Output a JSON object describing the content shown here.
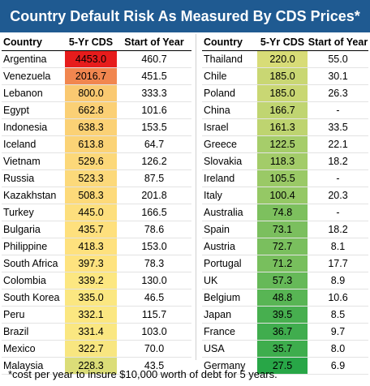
{
  "title": "Country Default Risk As Measured By CDS Prices*",
  "footnote": "*cost per year to insure $10,000 worth of debt for 5 years.",
  "colors": {
    "title_bg": "#1f5a91"
  },
  "chart_data": {
    "type": "table",
    "title": "Country Default Risk As Measured By CDS Prices*",
    "columns": [
      "Country",
      "5-Yr CDS",
      "Start of Year"
    ],
    "left_rows": [
      {
        "country": "Argentina",
        "cds": "4453.0",
        "soy": "460.7"
      },
      {
        "country": "Venezuela",
        "cds": "2016.7",
        "soy": "451.5"
      },
      {
        "country": "Lebanon",
        "cds": "800.0",
        "soy": "333.3"
      },
      {
        "country": "Egypt",
        "cds": "662.8",
        "soy": "101.6"
      },
      {
        "country": "Indonesia",
        "cds": "638.3",
        "soy": "153.5"
      },
      {
        "country": "Iceland",
        "cds": "613.8",
        "soy": "64.7"
      },
      {
        "country": "Vietnam",
        "cds": "529.6",
        "soy": "126.2"
      },
      {
        "country": "Russia",
        "cds": "523.3",
        "soy": "87.5"
      },
      {
        "country": "Kazakhstan",
        "cds": "508.3",
        "soy": "201.8"
      },
      {
        "country": "Turkey",
        "cds": "445.0",
        "soy": "166.5"
      },
      {
        "country": "Bulgaria",
        "cds": "435.7",
        "soy": "78.6"
      },
      {
        "country": "Philippine",
        "cds": "418.3",
        "soy": "153.0"
      },
      {
        "country": "South Africa",
        "cds": "397.3",
        "soy": "78.3"
      },
      {
        "country": "Colombia",
        "cds": "339.2",
        "soy": "130.0"
      },
      {
        "country": "South Korea",
        "cds": "335.0",
        "soy": "46.5"
      },
      {
        "country": "Peru",
        "cds": "332.1",
        "soy": "115.7"
      },
      {
        "country": "Brazil",
        "cds": "331.4",
        "soy": "103.0"
      },
      {
        "country": "Mexico",
        "cds": "322.7",
        "soy": "70.0"
      },
      {
        "country": "Malaysia",
        "cds": "228.3",
        "soy": "43.5"
      }
    ],
    "right_rows": [
      {
        "country": "Thailand",
        "cds": "220.0",
        "soy": "55.0"
      },
      {
        "country": "Chile",
        "cds": "185.0",
        "soy": "30.1"
      },
      {
        "country": "Poland",
        "cds": "185.0",
        "soy": "26.3"
      },
      {
        "country": "China",
        "cds": "166.7",
        "soy": "-"
      },
      {
        "country": "Israel",
        "cds": "161.3",
        "soy": "33.5"
      },
      {
        "country": "Greece",
        "cds": "122.5",
        "soy": "22.1"
      },
      {
        "country": "Slovakia",
        "cds": "118.3",
        "soy": "18.2"
      },
      {
        "country": "Ireland",
        "cds": "105.5",
        "soy": "-"
      },
      {
        "country": "Italy",
        "cds": "100.4",
        "soy": "20.3"
      },
      {
        "country": "Australia",
        "cds": "74.8",
        "soy": "-"
      },
      {
        "country": "Spain",
        "cds": "73.1",
        "soy": "18.2"
      },
      {
        "country": "Austria",
        "cds": "72.7",
        "soy": "8.1"
      },
      {
        "country": "Portugal",
        "cds": "71.2",
        "soy": "17.7"
      },
      {
        "country": "UK",
        "cds": "57.3",
        "soy": "8.9"
      },
      {
        "country": "Belgium",
        "cds": "48.8",
        "soy": "10.6"
      },
      {
        "country": "Japan",
        "cds": "39.5",
        "soy": "8.5"
      },
      {
        "country": "France",
        "cds": "36.7",
        "soy": "9.7"
      },
      {
        "country": "USA",
        "cds": "35.7",
        "soy": "8.0"
      },
      {
        "country": "Germany",
        "cds": "27.5",
        "soy": "6.9"
      }
    ]
  }
}
